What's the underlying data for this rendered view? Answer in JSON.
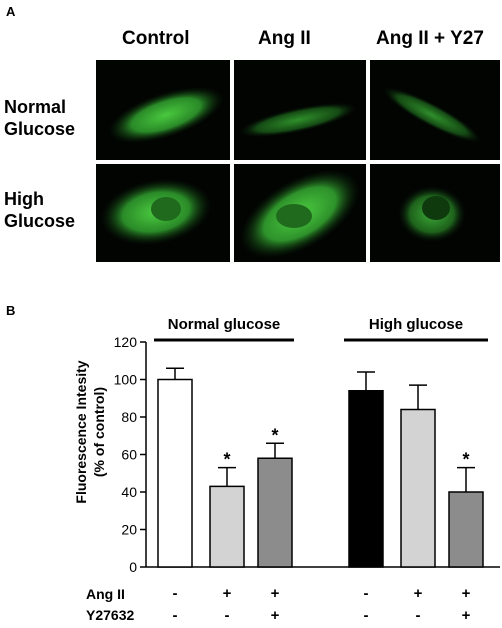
{
  "panel_a": {
    "letter": "A",
    "columns": [
      "Control",
      "Ang II",
      "Ang II + Y27"
    ],
    "rows": [
      {
        "line1": "Normal",
        "line2": "Glucose"
      },
      {
        "line1": "High",
        "line2": "Glucose"
      }
    ],
    "image_color": "#020402",
    "stain_color": "#3fbf3a"
  },
  "panel_b": {
    "letter": "B"
  },
  "chart_data": {
    "type": "bar",
    "ylabel_line1": "Fluorescence Intesity",
    "ylabel_line2": "(% of control)",
    "ylim": [
      0,
      120
    ],
    "yticks": [
      "0",
      "20",
      "40",
      "60",
      "80",
      "100",
      "120"
    ],
    "groups": [
      {
        "label": "Normal glucose",
        "bars": [
          {
            "value": 100,
            "error": 6,
            "color": "#ffffff",
            "star": ""
          },
          {
            "value": 43,
            "error": 10,
            "color": "#d3d3d3",
            "star": "*"
          },
          {
            "value": 58,
            "error": 8,
            "color": "#8c8c8c",
            "star": "*"
          }
        ]
      },
      {
        "label": "High glucose",
        "bars": [
          {
            "value": 94,
            "error": 10,
            "color": "#000000",
            "star": ""
          },
          {
            "value": 84,
            "error": 13,
            "color": "#d3d3d3",
            "star": ""
          },
          {
            "value": 40,
            "error": 13,
            "color": "#8c8c8c",
            "star": "*"
          }
        ]
      }
    ],
    "conditions": [
      {
        "label": "Ang II",
        "values": [
          "-",
          "+",
          "+",
          "-",
          "+",
          "+"
        ]
      },
      {
        "label": "Y27632",
        "values": [
          "-",
          "-",
          "+",
          "-",
          "-",
          "+"
        ]
      }
    ]
  }
}
